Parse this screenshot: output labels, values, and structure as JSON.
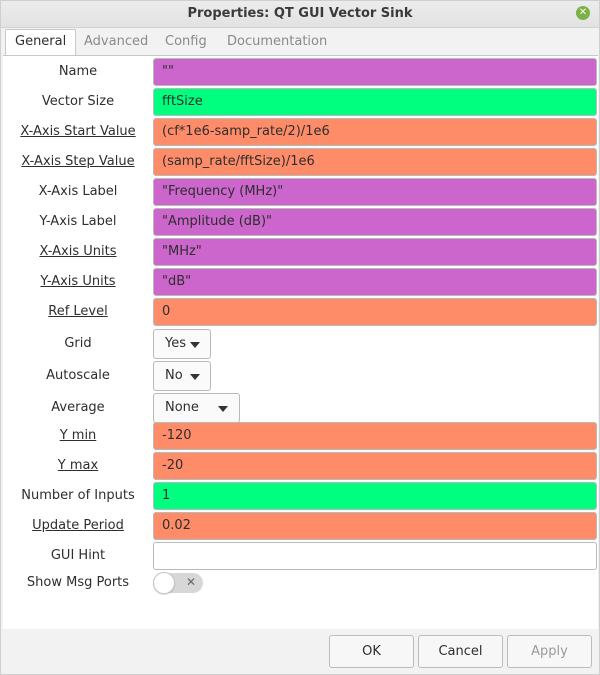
{
  "window": {
    "title": "Properties: QT GUI Vector Sink"
  },
  "tabs": [
    {
      "label": "General"
    },
    {
      "label": "Advanced"
    },
    {
      "label": "Config"
    },
    {
      "label": "Documentation"
    }
  ],
  "colors": {
    "string": "#cc66cc",
    "int": "#00ff7f",
    "float": "#ff8c69"
  },
  "fields": {
    "name": {
      "label": "Name",
      "value": "\"\""
    },
    "vector_size": {
      "label": "Vector Size",
      "value": "fftSize"
    },
    "x_start": {
      "label": "X-Axis Start Value",
      "value": "(cf*1e6-samp_rate/2)/1e6"
    },
    "x_step": {
      "label": "X-Axis Step Value",
      "value": "(samp_rate/fftSize)/1e6"
    },
    "x_label": {
      "label": "X-Axis Label",
      "value": "\"Frequency (MHz)\""
    },
    "y_label": {
      "label": "Y-Axis Label",
      "value": "\"Amplitude (dB)\""
    },
    "x_units": {
      "label": "X-Axis Units",
      "value": "\"MHz\""
    },
    "y_units": {
      "label": "Y-Axis Units",
      "value": "\"dB\""
    },
    "ref_level": {
      "label": "Ref Level",
      "value": "0"
    },
    "grid": {
      "label": "Grid",
      "value": "Yes"
    },
    "autoscale": {
      "label": "Autoscale",
      "value": "No"
    },
    "average": {
      "label": "Average",
      "value": "None"
    },
    "y_min": {
      "label": "Y min",
      "value": "-120"
    },
    "y_max": {
      "label": "Y max",
      "value": "-20"
    },
    "num_inputs": {
      "label": "Number of Inputs",
      "value": "1"
    },
    "update_period": {
      "label": "Update Period",
      "value": "0.02"
    },
    "gui_hint": {
      "label": "GUI Hint",
      "value": ""
    },
    "show_msg_ports": {
      "label": "Show Msg Ports",
      "value": "off"
    }
  },
  "buttons": {
    "ok": "OK",
    "cancel": "Cancel",
    "apply": "Apply"
  }
}
